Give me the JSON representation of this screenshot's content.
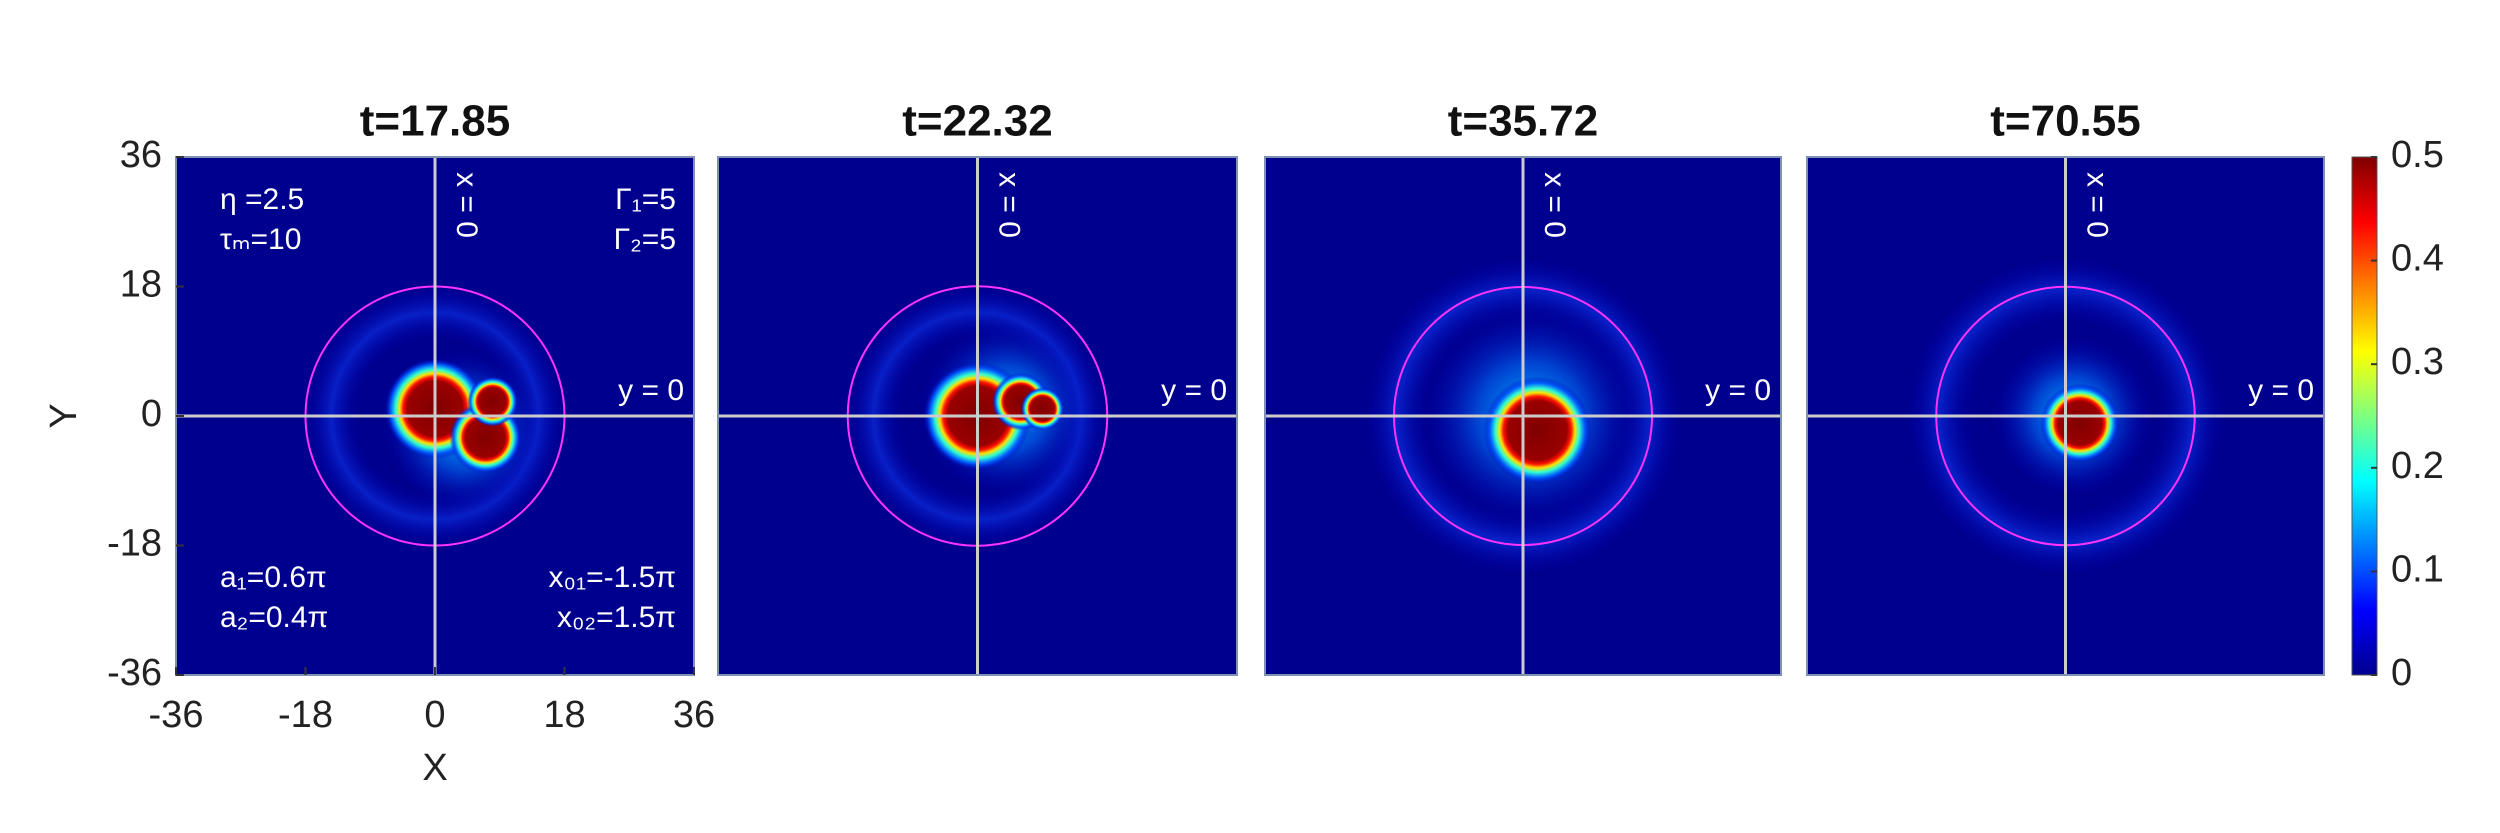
{
  "chart_data": [
    {
      "type": "heatmap",
      "title": "t=17.85",
      "xlabel": "X",
      "ylabel": "Y",
      "xlim": [
        -36,
        36
      ],
      "ylim": [
        -36,
        36
      ],
      "xticks": [
        -36,
        -18,
        0,
        18,
        36
      ],
      "yticks": [
        -36,
        -18,
        0,
        18,
        36
      ],
      "circle_radius": 18,
      "vline_label": "x = 0",
      "hline_label": "y = 0",
      "annotations": {
        "top_left": [
          "η =2.5",
          "τₘ=10"
        ],
        "top_right": [
          "Γ₁=5",
          "Γ₂=5"
        ],
        "bottom_left": [
          "a₁=0.6π",
          "a₂=0.4π"
        ],
        "bottom_right": [
          "x₀₁=-1.5π",
          "x₀₂=1.5π"
        ]
      }
    },
    {
      "type": "heatmap",
      "title": "t=22.32",
      "xlim": [
        -36,
        36
      ],
      "ylim": [
        -36,
        36
      ],
      "circle_radius": 18,
      "vline_label": "x = 0",
      "hline_label": "y = 0"
    },
    {
      "type": "heatmap",
      "title": "t=35.72",
      "xlim": [
        -36,
        36
      ],
      "ylim": [
        -36,
        36
      ],
      "circle_radius": 18,
      "vline_label": "x = 0",
      "hline_label": "y = 0"
    },
    {
      "type": "heatmap",
      "title": "t=70.55",
      "xlim": [
        -36,
        36
      ],
      "ylim": [
        -36,
        36
      ],
      "circle_radius": 18,
      "vline_label": "x = 0",
      "hline_label": "y = 0"
    }
  ],
  "colorbar": {
    "lim": [
      0,
      0.5
    ],
    "ticks": [
      0,
      0.1,
      0.2,
      0.3,
      0.4,
      0.5
    ]
  }
}
